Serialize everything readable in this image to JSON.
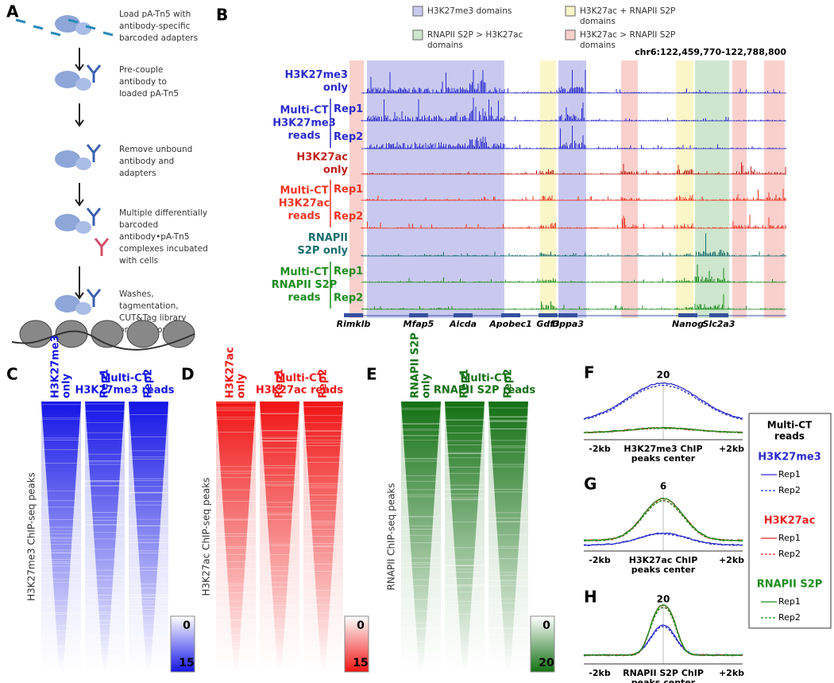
{
  "panel_a": {
    "label": "A",
    "steps": [
      [
        "Load pA-Tn5 with",
        "antibody-specific",
        "barcoded adapters"
      ],
      [
        "Pre-couple",
        "antibody to",
        "loaded pA-Tn5"
      ],
      [
        "Remove unbound",
        "antibody and",
        "adapters"
      ],
      [
        "Multiple differentially",
        "barcoded",
        "antibody•pA-Tn5",
        "complexes incubated",
        "with cells"
      ],
      [
        "Washes,",
        "tagmentation,",
        "CUT&Tag library",
        "preparation"
      ]
    ]
  },
  "panel_b": {
    "label": "B",
    "legend": [
      {
        "lines": [
          "H3K27me3 domains"
        ],
        "color": "#c9c9f0"
      },
      {
        "lines": [
          "H3K27ac + RNAPII S2P",
          "domains"
        ],
        "color": "#fbf6c8"
      },
      {
        "lines": [
          "RNAPII S2P > H3K27ac",
          "domains"
        ],
        "color": "#cde6cd"
      },
      {
        "lines": [
          "H3K27ac > RNAPII S2P",
          "domains"
        ],
        "color": "#f9d0cc"
      }
    ],
    "coordinates": "chr6:122,459,770-122,788,800",
    "tracks": [
      {
        "lines": [
          "H3K27me3",
          "only"
        ],
        "color": "#2b2bcc",
        "reps": []
      },
      {
        "lines": [
          "Multi-CT",
          "H3K27me3",
          "reads"
        ],
        "color": "#2b2bcc",
        "reps": [
          "Rep1",
          "Rep2"
        ]
      },
      {
        "lines": [
          "H3K27ac",
          "only"
        ],
        "color": "#c0201a",
        "reps": []
      },
      {
        "lines": [
          "Multi-CT",
          "H3K27ac",
          "reads"
        ],
        "color": "#ee3322",
        "reps": [
          "Rep1",
          "Rep2"
        ]
      },
      {
        "lines": [
          "RNAPII",
          "S2P only"
        ],
        "color": "#1a6e6e",
        "reps": []
      },
      {
        "lines": [
          "Multi-CT",
          "RNAPII S2P",
          "reads"
        ],
        "color": "#1e8c1e",
        "reps": [
          "Rep1",
          "Rep2"
        ]
      }
    ],
    "genes": [
      "Rimklb",
      "Mfap5",
      "Aicda",
      "Apobec1",
      "Gdf3",
      "Dppa3",
      "Nanog",
      "Slc2a3"
    ]
  },
  "heatmaps": [
    {
      "label": "C",
      "title": [
        "Multi-CT",
        "H3K27me3 reads"
      ],
      "columns": [
        [
          "H3K27me3",
          "only"
        ],
        [
          "Rep1"
        ],
        [
          "Rep2"
        ]
      ],
      "ylabel": "H3K27me3 ChIP-seq peaks",
      "scale": [
        0,
        15
      ],
      "color": "#1414e6"
    },
    {
      "label": "D",
      "title": [
        "Multi-CT",
        "H3K27ac reads"
      ],
      "columns": [
        [
          "H3K27ac",
          "only"
        ],
        [
          "Rep1"
        ],
        [
          "Rep2"
        ]
      ],
      "ylabel": "H3K27ac ChIP-seq peaks",
      "scale": [
        0,
        15
      ],
      "color": "#f01414"
    },
    {
      "label": "E",
      "title": [
        "Multi-CT",
        "RNAPII S2P reads"
      ],
      "columns": [
        [
          "RNAPII S2P",
          "only"
        ],
        [
          "Rep1"
        ],
        [
          "Rep2"
        ]
      ],
      "ylabel": "RNAPII ChIP-seq peaks",
      "scale": [
        0,
        20
      ],
      "color": "#137013"
    }
  ],
  "profiles": [
    {
      "label": "F",
      "peak": 20,
      "x_labels": [
        "-2kb",
        "+2kb"
      ],
      "center": [
        "H3K27me3 ChIP",
        "peaks center"
      ]
    },
    {
      "label": "G",
      "peak": 6,
      "x_labels": [
        "-2kb",
        "+2kb"
      ],
      "center": [
        "H3K27ac ChIP",
        "peaks center"
      ]
    },
    {
      "label": "H",
      "peak": 20,
      "x_labels": [
        "-2kb",
        "+2kb"
      ],
      "center": [
        "RNAPII S2P ChIP",
        "peaks center"
      ]
    }
  ],
  "profile_legend": {
    "title": [
      "Multi-CT",
      "reads"
    ],
    "groups": [
      {
        "name": "H3K27me3",
        "color": "#2b2bcc",
        "reps": [
          "Rep1",
          "Rep2"
        ]
      },
      {
        "name": "H3K27ac",
        "color": "#ee2222",
        "reps": [
          "Rep1",
          "Rep2"
        ]
      },
      {
        "name": "RNAPII S2P",
        "color": "#1e8c1e",
        "reps": [
          "Rep1",
          "Rep2"
        ]
      }
    ]
  }
}
